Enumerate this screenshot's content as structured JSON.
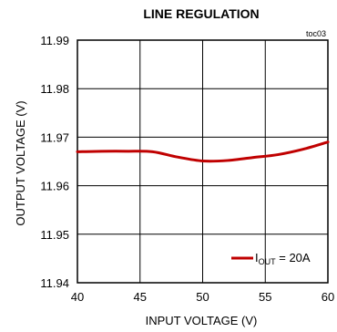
{
  "chart_data": {
    "type": "line",
    "title": "LINE REGULATION",
    "tag": "toc03",
    "xlabel": "INPUT VOLTAGE (V)",
    "ylabel": "OUTPUT VOLTAGE (V)",
    "xlim": [
      40,
      60
    ],
    "ylim": [
      11.94,
      11.99
    ],
    "xticks": [
      "40",
      "45",
      "50",
      "55",
      "60"
    ],
    "yticks": [
      "11.99",
      "11.98",
      "11.97",
      "11.96",
      "11.95",
      "11.94"
    ],
    "grid": true,
    "legend_position": "bottom-right",
    "series": [
      {
        "name_main": "I",
        "name_sub": "OUT",
        "name_tail": " = 20A",
        "color": "#c00000",
        "x": [
          40,
          42,
          44,
          46,
          48,
          50,
          52,
          54,
          56,
          58,
          60
        ],
        "y": [
          11.967,
          11.9671,
          11.9671,
          11.967,
          11.9659,
          11.9651,
          11.9652,
          11.9658,
          11.9664,
          11.9675,
          11.969
        ]
      }
    ]
  }
}
